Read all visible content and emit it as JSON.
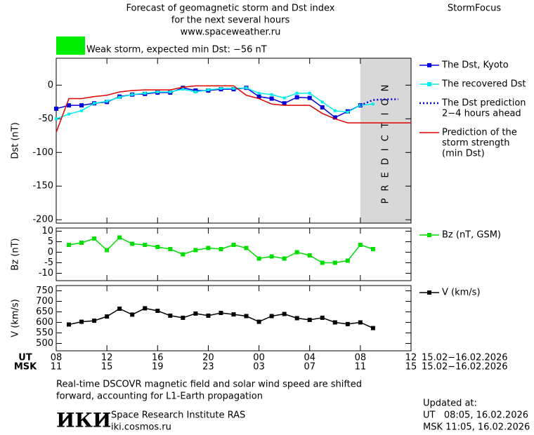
{
  "header": {
    "title_lines": [
      "Forecast of geomagnetic storm and Dst index",
      "for the next several hours",
      "www.spaceweather.ru"
    ],
    "brand": "StormFocus",
    "storm_color": "#00ee00",
    "storm_text": "Weak storm, expected min Dst: −56 nT"
  },
  "chart_data": [
    {
      "type": "line",
      "ylabel": "Dst (nT)",
      "xlim": [
        0,
        28
      ],
      "ylim": [
        -205,
        40
      ],
      "yticks": [
        0,
        -50,
        -100,
        -150,
        -200
      ],
      "shade": {
        "x": [
          24,
          28
        ],
        "label": "PREDICTION",
        "color": "#d8d8d8"
      },
      "series": [
        {
          "name": [
            "The Dst, Kyoto"
          ],
          "color": "#0000dd",
          "marker": "square",
          "x": [
            0,
            1,
            2,
            3,
            4,
            5,
            6,
            7,
            8,
            9,
            10,
            11,
            12,
            13,
            14,
            15,
            16,
            17,
            18,
            19,
            20,
            21,
            22,
            23,
            24
          ],
          "values": [
            -35,
            -30,
            -30,
            -27,
            -25,
            -17,
            -14,
            -13,
            -11,
            -11,
            -4,
            -8,
            -8,
            -6,
            -6,
            -4,
            -17,
            -20,
            -27,
            -18,
            -19,
            -33,
            -48,
            -39,
            -30
          ]
        },
        {
          "name": [
            "The recovered Dst"
          ],
          "color": "#00eeee",
          "marker": "small",
          "x": [
            0,
            1,
            2,
            3,
            4,
            5,
            6,
            7,
            8,
            9,
            10,
            11,
            12,
            13,
            14,
            15,
            16,
            17,
            18,
            19,
            20,
            21,
            22,
            23,
            24,
            25
          ],
          "values": [
            -50,
            -43,
            -38,
            -27,
            -24,
            -18,
            -14,
            -12,
            -10,
            -10,
            -6,
            -10,
            -7,
            -5,
            -5,
            -4,
            -12,
            -14,
            -19,
            -12,
            -12,
            -25,
            -38,
            -40,
            -30,
            -28
          ]
        },
        {
          "name": [
            "The Dst prediction",
            "2−4 hours ahead"
          ],
          "color": "#0000dd",
          "dash": true,
          "x": [
            24,
            25,
            26,
            27
          ],
          "values": [
            -30,
            -22,
            -21,
            -21
          ]
        },
        {
          "name": [
            "Prediction of the",
            "storm strength",
            "(min Dst)"
          ],
          "color": "#dd0000",
          "x": [
            0,
            1,
            2,
            3,
            4,
            5,
            6,
            7,
            8,
            9,
            10,
            11,
            12,
            13,
            14,
            15,
            16,
            17,
            18,
            20,
            21,
            22,
            22.5,
            23,
            28
          ],
          "values": [
            -70,
            -20,
            -20,
            -17,
            -15,
            -10,
            -8,
            -7,
            -7,
            -7,
            -3,
            -1,
            -1,
            -1,
            -1,
            -15,
            -20,
            -28,
            -30,
            -30,
            -42,
            -50,
            -53,
            -56,
            -56
          ]
        }
      ]
    },
    {
      "type": "line",
      "ylabel": "Bz (nT)",
      "xlim": [
        0,
        28
      ],
      "ylim": [
        -13.5,
        11.5
      ],
      "yticks": [
        10,
        5,
        0,
        -5,
        -10
      ],
      "series": [
        {
          "name": [
            "Bz (nT, GSM)"
          ],
          "color": "#00dd00",
          "marker": "square",
          "x": [
            1,
            2,
            3,
            4,
            5,
            6,
            7,
            8,
            9,
            10,
            11,
            12,
            13,
            14,
            15,
            16,
            17,
            18,
            19,
            20,
            21,
            22,
            23,
            24,
            25
          ],
          "values": [
            3.5,
            4.5,
            6.5,
            1,
            7,
            4,
            3.5,
            2.5,
            1.5,
            -1,
            1,
            2,
            1.5,
            3.5,
            2,
            -3,
            -2,
            -3,
            0,
            -1.5,
            -5,
            -5,
            -4,
            3.5,
            1.5
          ]
        }
      ]
    },
    {
      "type": "line",
      "ylabel": "V (km/s)",
      "xlim": [
        0,
        28
      ],
      "ylim": [
        465,
        775
      ],
      "yticks": [
        750,
        700,
        650,
        600,
        550,
        500
      ],
      "xticks": [
        {
          "value": 0,
          "label": "08"
        },
        {
          "value": 4,
          "label": "12"
        },
        {
          "value": 8,
          "label": "16"
        },
        {
          "value": 12,
          "label": "20"
        },
        {
          "value": 16,
          "label": "00"
        },
        {
          "value": 20,
          "label": "04"
        },
        {
          "value": 24,
          "label": "08"
        },
        {
          "value": 28,
          "label": "12"
        }
      ],
      "msk_xticks": [
        {
          "value": 0,
          "label": "11"
        },
        {
          "value": 4,
          "label": "15"
        },
        {
          "value": 8,
          "label": "19"
        },
        {
          "value": 12,
          "label": "23"
        },
        {
          "value": 16,
          "label": "03"
        },
        {
          "value": 20,
          "label": "07"
        },
        {
          "value": 24,
          "label": "11"
        },
        {
          "value": 28,
          "label": "15"
        }
      ],
      "ut_label": "UT",
      "msk_label": "MSK",
      "date_ranges": [
        "15.02−16.02.2026",
        "15.02−16.02.2026"
      ],
      "series": [
        {
          "name": [
            "V (km/s)"
          ],
          "color": "#000000",
          "marker": "square",
          "x": [
            1,
            2,
            3,
            4,
            5,
            6,
            7,
            8,
            9,
            10,
            11,
            12,
            13,
            14,
            15,
            16,
            17,
            18,
            19,
            20,
            21,
            22,
            23,
            24,
            25
          ],
          "values": [
            590,
            603,
            608,
            628,
            665,
            637,
            667,
            655,
            632,
            622,
            642,
            632,
            645,
            638,
            630,
            603,
            630,
            640,
            620,
            612,
            622,
            600,
            592,
            600,
            573
          ]
        }
      ]
    }
  ],
  "footer": {
    "note_lines": [
      "Real-time DSCOVR magnetic field and solar wind speed are shifted",
      "forward, accounting for L1-Earth propagation"
    ],
    "logo": "ИКИ",
    "institute": "Space Research Institute RAS",
    "site": "iki.cosmos.ru",
    "updated_lines": [
      "Updated at:",
      "UT   08:05, 16.02.2026",
      "MSK 11:05, 16.02.2026"
    ]
  }
}
